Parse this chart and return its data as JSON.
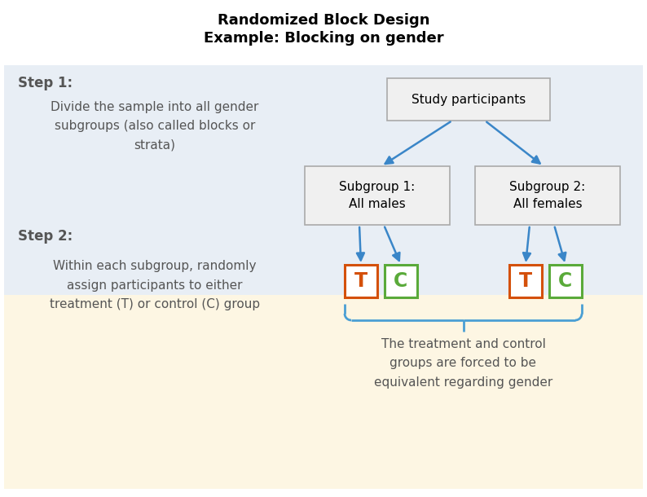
{
  "title_line1": "Randomized Block Design",
  "title_line2": "Example: Blocking on gender",
  "title_fontsize": 13,
  "bg_color_top": "#e8eef5",
  "bg_color_bottom": "#fdf6e3",
  "step1_label": "Step 1:",
  "step1_text": "Divide the sample into all gender\nsubgroups (also called blocks or\nstrata)",
  "step2_label": "Step 2:",
  "step2_text": "Within each subgroup, randomly\nassign participants to either\ntreatment (T) or control (C) group",
  "box_study": "Study participants",
  "box_sub1": "Subgroup 1:\nAll males",
  "box_sub2": "Subgroup 2:\nAll females",
  "box_face_color": "#f0f0f0",
  "box_edge_color": "#aaaaaa",
  "arrow_color": "#3a86c8",
  "T_color": "#d4500a",
  "C_color": "#5aaa3a",
  "bottom_text": "The treatment and control\ngroups are forced to be\nequivalent regarding gender",
  "brace_color": "#4a9fd4",
  "step_label_color": "#555555",
  "step_label_fontsize": 12,
  "step_text_fontsize": 11
}
